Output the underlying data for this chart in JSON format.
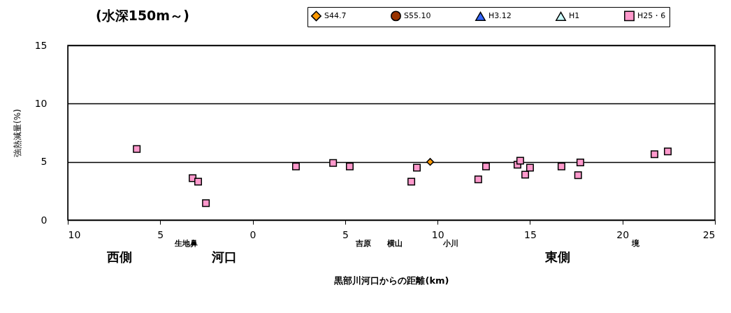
{
  "chart_data": {
    "type": "scatter",
    "title": "(水深150m～)",
    "xlabel": "黒部川河口からの距離(km)",
    "ylabel": "強熱減量(%)",
    "xlim": [
      -10,
      25
    ],
    "xticks": [
      {
        "value": -10,
        "label": "10"
      },
      {
        "value": -5,
        "label": "5"
      },
      0,
      5,
      10,
      15,
      20,
      25
    ],
    "ylim": [
      0,
      15
    ],
    "yticks": [
      0,
      5,
      10,
      15
    ],
    "grid": "y",
    "legend": "top right",
    "annotations": [
      "生地鼻",
      "吉原",
      "横山",
      "小川",
      "境",
      "西側",
      "河口",
      "東側"
    ],
    "series": [
      {
        "name": "S44.7",
        "color": "#ff9900",
        "marker": "diamond",
        "x": [
          9.6
        ],
        "values": [
          5.0
        ]
      },
      {
        "name": "S55.10",
        "color": "#993300",
        "marker": "circle"
      },
      {
        "name": "H3.12",
        "color": "#3366ff",
        "marker": "triangle"
      },
      {
        "name": "H1",
        "color": "#ccffff",
        "marker": "triangle"
      },
      {
        "name": "H25・6",
        "color": "#ff99cc",
        "marker": "square",
        "x": [
          -6.27,
          -3.25,
          -2.95,
          -2.53,
          2.34,
          4.35,
          5.25,
          8.58,
          8.88,
          12.2,
          12.62,
          14.32,
          14.47,
          14.74,
          15.0,
          16.7,
          17.6,
          17.72,
          21.73,
          22.45
        ],
        "values": [
          6.1,
          3.6,
          3.3,
          1.45,
          4.6,
          4.9,
          4.6,
          3.3,
          4.5,
          3.5,
          4.6,
          4.75,
          5.1,
          3.9,
          4.5,
          4.6,
          3.85,
          4.95,
          5.65,
          5.9
        ]
      }
    ]
  }
}
